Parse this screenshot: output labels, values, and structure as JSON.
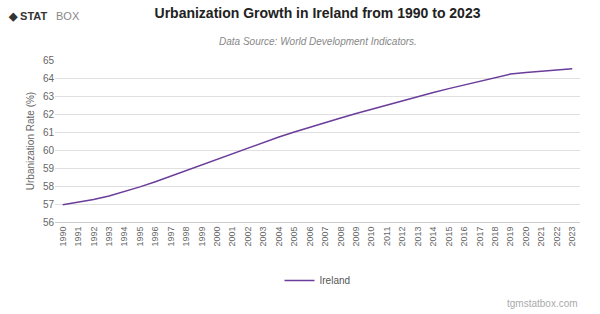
{
  "chart_data": {
    "type": "line",
    "title": "Urbanization Growth in Ireland from 1990 to 2023",
    "subtitle": "Data Source: World Development Indicators.",
    "ylabel": "Urbanization Rate (%)",
    "annotations": [
      "◆ STAT",
      "BOX",
      "tgmstatbox.com"
    ],
    "x": [
      1990,
      1991,
      1992,
      1993,
      1994,
      1995,
      1996,
      1997,
      1998,
      1999,
      2000,
      2001,
      2002,
      2003,
      2004,
      2005,
      2006,
      2007,
      2008,
      2009,
      2010,
      2011,
      2012,
      2013,
      2014,
      2015,
      2016,
      2017,
      2018,
      2019,
      2020,
      2021,
      2022,
      2023
    ],
    "series": [
      {
        "name": "Ireland",
        "color": "#6A3D9A",
        "values": [
          56.96,
          57.1,
          57.25,
          57.45,
          57.68,
          57.95,
          58.24,
          58.55,
          58.87,
          59.19,
          59.51,
          59.82,
          60.13,
          60.43,
          60.72,
          61.0,
          61.27,
          61.53,
          61.78,
          62.03,
          62.27,
          62.51,
          62.74,
          62.97,
          63.19,
          63.41,
          63.62,
          63.83,
          64.03,
          64.22,
          64.3,
          64.37,
          64.44,
          64.51
        ]
      }
    ],
    "xlim": [
      1989.5,
      2023.5
    ],
    "xticks": [
      1990,
      1991,
      1992,
      1993,
      1994,
      1995,
      1996,
      1997,
      1998,
      1999,
      2000,
      2001,
      2002,
      2003,
      2004,
      2005,
      2006,
      2007,
      2008,
      2009,
      2010,
      2011,
      2012,
      2013,
      2014,
      2015,
      2016,
      2017,
      2018,
      2019,
      2020,
      2021,
      2022,
      2023
    ],
    "ylim": [
      56,
      65
    ],
    "yticks": [
      56,
      57,
      58,
      59,
      60,
      61,
      62,
      63,
      64,
      65
    ],
    "grid": true,
    "legend": "bottom"
  }
}
